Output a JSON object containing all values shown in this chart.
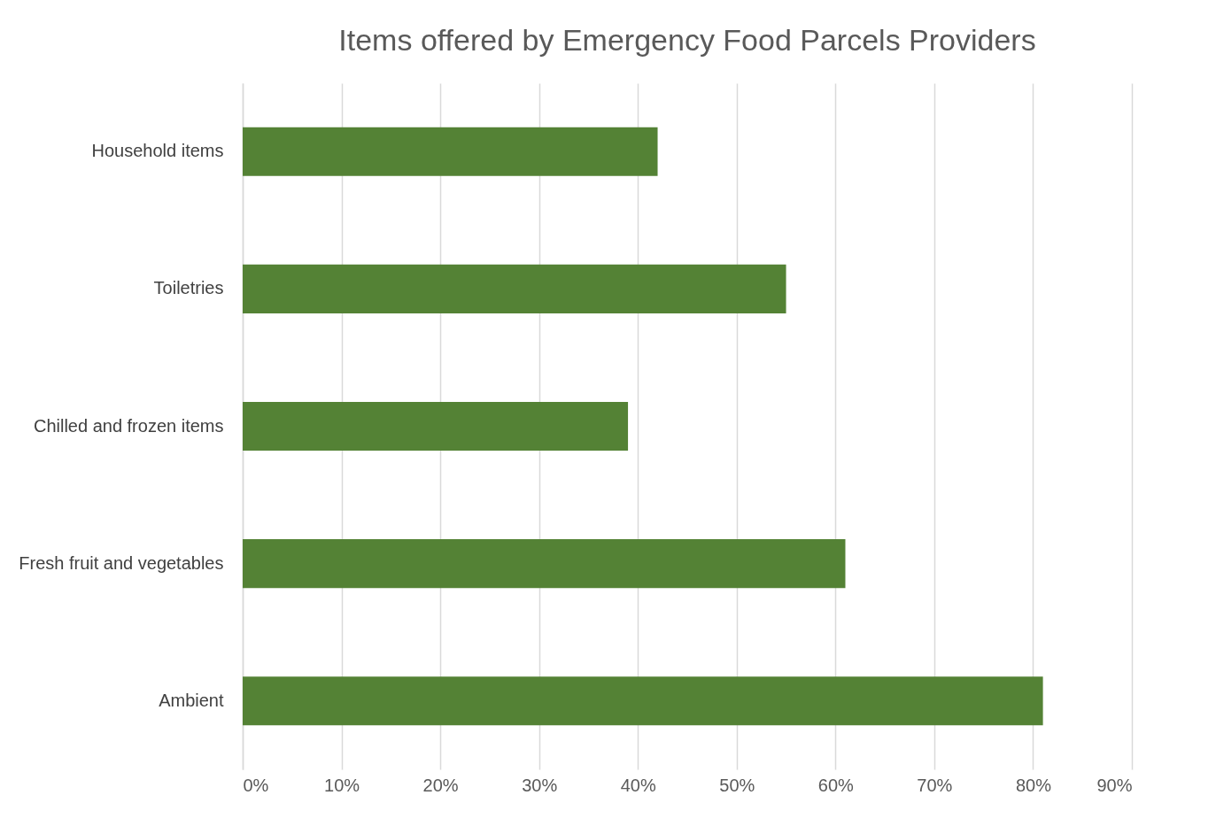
{
  "chart_data": {
    "type": "bar",
    "orientation": "horizontal",
    "title": "Items offered by Emergency Food Parcels Providers",
    "categories": [
      "Household items",
      "Toiletries",
      "Chilled and frozen items",
      "Fresh fruit and vegetables",
      "Ambient"
    ],
    "series": [
      {
        "color": "#548235",
        "values": [
          42,
          55,
          39,
          61,
          81
        ]
      }
    ],
    "xlim": [
      0,
      90
    ],
    "xticks": [
      {
        "value": 0,
        "label": "0%"
      },
      {
        "value": 10,
        "label": "10%"
      },
      {
        "value": 20,
        "label": "20%"
      },
      {
        "value": 30,
        "label": "30%"
      },
      {
        "value": 40,
        "label": "40%"
      },
      {
        "value": 50,
        "label": "50%"
      },
      {
        "value": 60,
        "label": "60%"
      },
      {
        "value": 70,
        "label": "70%"
      },
      {
        "value": 80,
        "label": "80%"
      },
      {
        "value": 90,
        "label": "90%"
      }
    ],
    "grid": "x",
    "legend": false
  }
}
